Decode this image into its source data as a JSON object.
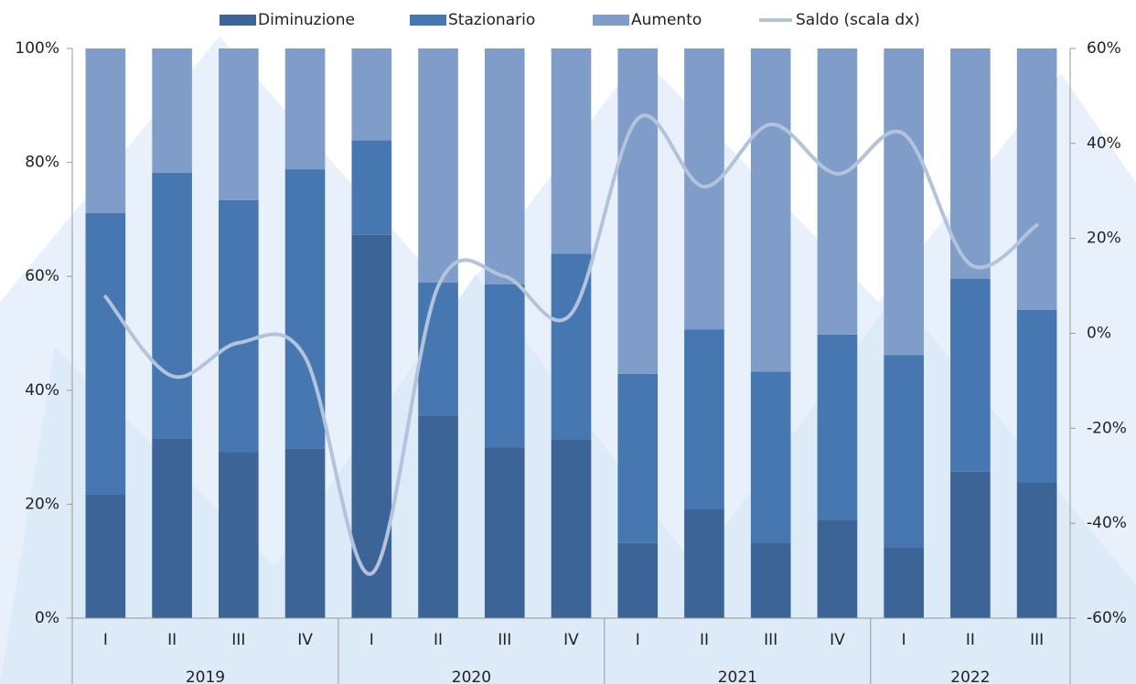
{
  "chart_data": {
    "type": "stacked_bar_line",
    "groups": [
      {
        "label": "2019",
        "categories": [
          "I",
          "II",
          "III",
          "IV"
        ]
      },
      {
        "label": "2020",
        "categories": [
          "I",
          "II",
          "III",
          "IV"
        ]
      },
      {
        "label": "2021",
        "categories": [
          "I",
          "II",
          "III",
          "IV"
        ]
      },
      {
        "label": "2022",
        "categories": [
          "I",
          "II",
          "III"
        ]
      }
    ],
    "series": [
      {
        "name": "Diminuzione",
        "color": "#3c6496",
        "values": [
          21.8,
          31.6,
          29.2,
          29.7,
          67.3,
          35.6,
          30.0,
          31.3,
          13.2,
          19.1,
          13.3,
          17.3,
          12.5,
          25.7,
          23.9
        ]
      },
      {
        "name": "Stazionario",
        "color": "#4777b1",
        "values": [
          49.3,
          46.6,
          44.2,
          49.1,
          16.6,
          23.3,
          28.6,
          32.7,
          29.7,
          31.6,
          30.0,
          32.5,
          33.7,
          33.9,
          30.2
        ]
      },
      {
        "name": "Aumento",
        "color": "#809dca",
        "values": [
          28.9,
          21.8,
          26.6,
          21.2,
          16.1,
          41.1,
          41.4,
          36.0,
          57.1,
          49.3,
          56.7,
          50.2,
          53.8,
          40.4,
          45.9
        ]
      },
      {
        "name": "Saldo (scala dx)",
        "color": "#b3c3dc",
        "axis": "y2",
        "type": "line",
        "values": [
          7.7,
          -9,
          -2,
          -5,
          -50.6,
          9.9,
          12,
          4.1,
          45.2,
          30.9,
          44,
          33.6,
          42,
          14.5,
          22.8
        ]
      }
    ],
    "ylim": [
      0,
      100
    ],
    "yticks": [
      {
        "value": 0,
        "label": "0%"
      },
      {
        "value": 20,
        "label": "20%"
      },
      {
        "value": 40,
        "label": "40%"
      },
      {
        "value": 60,
        "label": "60%"
      },
      {
        "value": 80,
        "label": "80%"
      },
      {
        "value": 100,
        "label": "100%"
      }
    ],
    "y2lim": [
      -60,
      60
    ],
    "y2ticks": [
      {
        "value": -60,
        "label": "-60%"
      },
      {
        "value": -40,
        "label": "-40%"
      },
      {
        "value": -20,
        "label": "-20%"
      },
      {
        "value": 0,
        "label": "0%"
      },
      {
        "value": 20,
        "label": "20%"
      },
      {
        "value": 40,
        "label": "40%"
      },
      {
        "value": 60,
        "label": "60%"
      }
    ],
    "legend": "top"
  }
}
